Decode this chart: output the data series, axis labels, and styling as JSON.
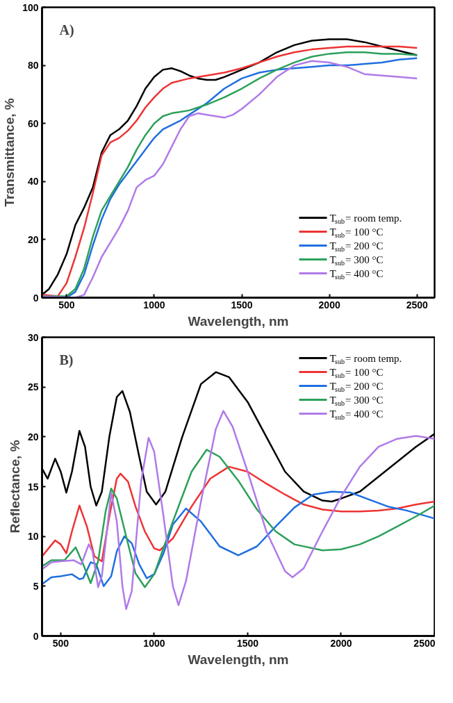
{
  "chart_data": [
    {
      "type": "line",
      "xlabel": "Wavelength, nm",
      "ylabel": "Transmittance, %",
      "annotations": [
        "A)"
      ],
      "xlim": [
        360,
        2600
      ],
      "ylim": [
        0,
        100
      ],
      "xticks": [
        500,
        1000,
        1500,
        2000,
        2500
      ],
      "yticks": [
        0,
        20,
        40,
        60,
        80,
        100
      ],
      "grid": false,
      "legend": "bottom right",
      "line_style": "solid",
      "marker": "none",
      "series": [
        {
          "name": "T$_{sub}$= room temp.",
          "color": "#000000",
          "x": [
            360,
            400,
            450,
            500,
            550,
            600,
            650,
            700,
            750,
            800,
            850,
            900,
            950,
            1000,
            1050,
            1100,
            1150,
            1200,
            1250,
            1300,
            1350,
            1400,
            1500,
            1600,
            1700,
            1800,
            1900,
            2000,
            2100,
            2200,
            2300,
            2400,
            2500
          ],
          "values": [
            1,
            3,
            8,
            15,
            25,
            31,
            38,
            50,
            56,
            58,
            61,
            66,
            72,
            76,
            78.5,
            79,
            78,
            76.5,
            75.5,
            75,
            75,
            76,
            78.5,
            81,
            84.5,
            87,
            88.5,
            89,
            89,
            88,
            86.5,
            85,
            83.5
          ]
        },
        {
          "name": "T$_{sub}$= 100 °C",
          "color": "#ee3333",
          "x": [
            360,
            450,
            500,
            550,
            600,
            650,
            700,
            750,
            800,
            850,
            900,
            950,
            1000,
            1050,
            1100,
            1200,
            1300,
            1400,
            1500,
            1600,
            1700,
            1800,
            1900,
            2000,
            2100,
            2200,
            2300,
            2400,
            2500
          ],
          "values": [
            1,
            0.5,
            5,
            14,
            24,
            36,
            49,
            53.5,
            55,
            57.5,
            61,
            65.5,
            69,
            72,
            74,
            75.5,
            76.5,
            77.5,
            79,
            81,
            83,
            84.5,
            85.5,
            86,
            86.5,
            86.5,
            86.5,
            86.5,
            86
          ]
        },
        {
          "name": "T$_{sub}$= 200 °C",
          "color": "#1f6fe0",
          "x": [
            360,
            500,
            550,
            600,
            650,
            700,
            750,
            800,
            850,
            900,
            950,
            1000,
            1050,
            1100,
            1150,
            1200,
            1300,
            1400,
            1500,
            1600,
            1700,
            1800,
            1900,
            2000,
            2100,
            2200,
            2300,
            2400,
            2500
          ],
          "values": [
            0.5,
            0,
            2,
            8,
            18,
            27,
            34,
            39,
            43,
            47,
            51,
            55,
            58,
            59.5,
            61,
            63,
            67,
            72,
            75.5,
            77.5,
            78.5,
            79,
            79.5,
            80,
            80,
            80.5,
            81,
            82,
            82.5
          ]
        },
        {
          "name": "T$_{sub}$= 300 °C",
          "color": "#2ca05a",
          "x": [
            360,
            500,
            550,
            600,
            650,
            700,
            750,
            800,
            850,
            900,
            950,
            1000,
            1050,
            1100,
            1200,
            1300,
            1400,
            1500,
            1600,
            1700,
            1800,
            1900,
            2000,
            2100,
            2200,
            2300,
            2400,
            2500
          ],
          "values": [
            0.5,
            0.5,
            3,
            10,
            21,
            30,
            35,
            40,
            45,
            51,
            56,
            60,
            62.5,
            63.5,
            64.5,
            66.5,
            69,
            72,
            75.5,
            78.5,
            81,
            83,
            84,
            84.5,
            84.5,
            84,
            84,
            83.5
          ]
        },
        {
          "name": "T$_{sub}$= 400 °C",
          "color": "#b07ae8",
          "x": [
            360,
            550,
            600,
            650,
            700,
            750,
            800,
            850,
            900,
            950,
            1000,
            1050,
            1100,
            1150,
            1200,
            1250,
            1300,
            1400,
            1450,
            1500,
            1600,
            1700,
            1800,
            1900,
            2000,
            2100,
            2200,
            2300,
            2400,
            2500
          ],
          "values": [
            0.5,
            0,
            1,
            7,
            14,
            19,
            24,
            30,
            38,
            40.5,
            42,
            46,
            52,
            58,
            62.5,
            63.5,
            63,
            62,
            63,
            65,
            70,
            76,
            80,
            81.5,
            81,
            79.5,
            77,
            76.5,
            76,
            75.5
          ]
        }
      ]
    },
    {
      "type": "line",
      "xlabel": "Wavelength, nm",
      "ylabel": "Reflectance, %",
      "annotations": [
        "B)"
      ],
      "xlim": [
        400,
        2500
      ],
      "ylim": [
        0,
        30
      ],
      "xticks": [
        500,
        1000,
        1500,
        2000,
        2500
      ],
      "yticks": [
        0,
        5,
        10,
        15,
        20,
        25,
        30
      ],
      "grid": false,
      "legend": "top right",
      "line_style": "solid",
      "marker": "none",
      "series": [
        {
          "name": "T$_{sub}$= room temp.",
          "color": "#000000",
          "x": [
            400,
            430,
            470,
            500,
            530,
            560,
            600,
            630,
            660,
            690,
            720,
            760,
            800,
            830,
            870,
            920,
            960,
            1010,
            1060,
            1150,
            1250,
            1330,
            1400,
            1500,
            1600,
            1700,
            1800,
            1900,
            1950,
            2000,
            2100,
            2200,
            2300,
            2400,
            2500
          ],
          "values": [
            16.8,
            15.8,
            17.8,
            16.5,
            14.4,
            16.5,
            20.6,
            19,
            15,
            13.1,
            14.5,
            20,
            24,
            24.6,
            22.5,
            18,
            14.5,
            13.2,
            14.5,
            20,
            25.3,
            26.5,
            26,
            23.5,
            20,
            16.5,
            14.5,
            13.6,
            13.5,
            13.8,
            14.5,
            16,
            17.5,
            19,
            20.3
          ]
        },
        {
          "name": "T$_{sub}$= 100 °C",
          "color": "#ee3333",
          "x": [
            400,
            470,
            500,
            530,
            560,
            600,
            640,
            680,
            720,
            760,
            800,
            820,
            860,
            900,
            950,
            1000,
            1030,
            1100,
            1200,
            1300,
            1400,
            1500,
            1600,
            1700,
            1800,
            1900,
            2000,
            2100,
            2200,
            2300,
            2400,
            2500
          ],
          "values": [
            8,
            9.6,
            9.2,
            8.3,
            10.5,
            13.1,
            11,
            8,
            7.5,
            12,
            15.8,
            16.3,
            15.5,
            13,
            10.5,
            8.8,
            8.6,
            9.8,
            13,
            15.8,
            17,
            16.5,
            15.3,
            14.2,
            13.2,
            12.7,
            12.5,
            12.5,
            12.6,
            12.8,
            13.2,
            13.5
          ]
        },
        {
          "name": "T$_{sub}$= 200 °C",
          "color": "#1f6fe0",
          "x": [
            400,
            450,
            500,
            560,
            600,
            620,
            660,
            690,
            730,
            770,
            800,
            840,
            880,
            920,
            960,
            1000,
            1050,
            1100,
            1170,
            1250,
            1350,
            1450,
            1550,
            1650,
            1750,
            1850,
            1950,
            2050,
            2150,
            2250,
            2350,
            2500
          ],
          "values": [
            5.2,
            5.9,
            6.0,
            6.2,
            5.7,
            5.8,
            7.4,
            7.2,
            5,
            6,
            8.5,
            10,
            9.3,
            7.2,
            5.8,
            6.2,
            8.3,
            11.2,
            12.8,
            11.5,
            9,
            8.1,
            9.0,
            11,
            12.9,
            14.2,
            14.5,
            14.4,
            13.7,
            13,
            12.6,
            11.8
          ]
        },
        {
          "name": "T$_{sub}$= 300 °C",
          "color": "#2ca05a",
          "x": [
            400,
            450,
            520,
            580,
            620,
            660,
            700,
            740,
            770,
            800,
            850,
            900,
            950,
            1000,
            1100,
            1200,
            1280,
            1350,
            1450,
            1550,
            1650,
            1750,
            1900,
            2000,
            2100,
            2200,
            2300,
            2400,
            2500
          ],
          "values": [
            7,
            7.6,
            7.6,
            8.9,
            7.2,
            5.3,
            7.5,
            12.5,
            14.8,
            13.8,
            10,
            6.3,
            4.9,
            6.2,
            11.5,
            16.5,
            18.7,
            18,
            15.6,
            12.7,
            10.5,
            9.2,
            8.6,
            8.7,
            9.2,
            10,
            11,
            12,
            13.1
          ]
        },
        {
          "name": "T$_{sub}$= 400 °C",
          "color": "#b07ae8",
          "x": [
            400,
            450,
            500,
            570,
            610,
            650,
            670,
            700,
            720,
            770,
            800,
            830,
            850,
            880,
            930,
            970,
            1000,
            1050,
            1100,
            1130,
            1170,
            1250,
            1330,
            1370,
            1420,
            1500,
            1600,
            1700,
            1740,
            1800,
            1900,
            2000,
            2100,
            2200,
            2300,
            2400,
            2500
          ],
          "values": [
            6.7,
            7.4,
            7.5,
            7.6,
            7.2,
            9.2,
            8.5,
            4.9,
            6,
            14.4,
            11.5,
            5,
            2.7,
            4.5,
            15.5,
            19.9,
            18.5,
            12,
            5,
            3.1,
            5.5,
            13.5,
            20.8,
            22.6,
            21,
            16.5,
            10.5,
            6.5,
            5.9,
            6.8,
            10.5,
            14,
            17,
            19,
            19.8,
            20.1,
            19.8
          ]
        }
      ]
    }
  ]
}
